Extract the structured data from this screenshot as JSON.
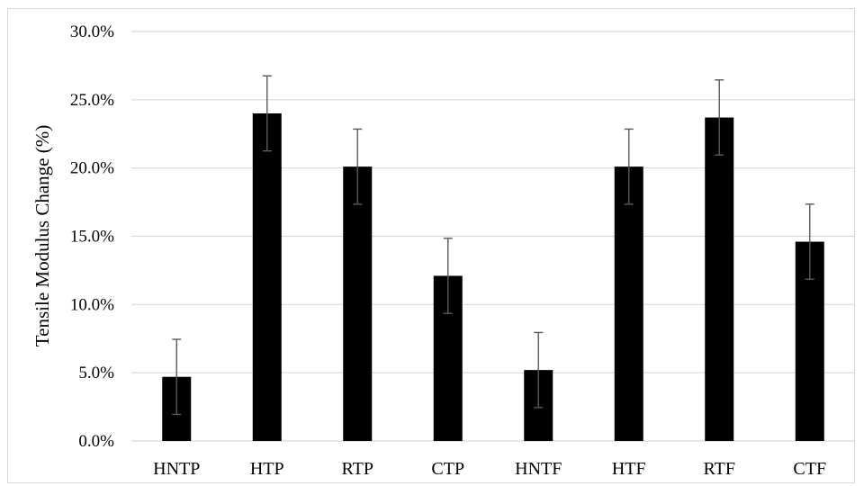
{
  "chart_data": {
    "type": "bar",
    "categories": [
      "HNTP",
      "HTP",
      "RTP",
      "CTP",
      "HNTF",
      "HTF",
      "RTF",
      "CTF"
    ],
    "values": [
      4.7,
      24.0,
      20.1,
      12.1,
      5.2,
      20.1,
      23.7,
      14.6
    ],
    "error": [
      2.75,
      2.75,
      2.75,
      2.75,
      2.75,
      2.75,
      2.75,
      2.75
    ],
    "value_unit": "%",
    "title": "",
    "xlabel": "",
    "ylabel": "Tensile Modulus Change (%)",
    "ylim": [
      0,
      30
    ],
    "yticks": [
      "0.0%",
      "5.0%",
      "10.0%",
      "15.0%",
      "20.0%",
      "25.0%",
      "30.0%"
    ],
    "grid": true,
    "legend": "none",
    "colors": {
      "bar": "#000000",
      "grid": "#d9d9d9",
      "error_bar": "#595959"
    }
  }
}
